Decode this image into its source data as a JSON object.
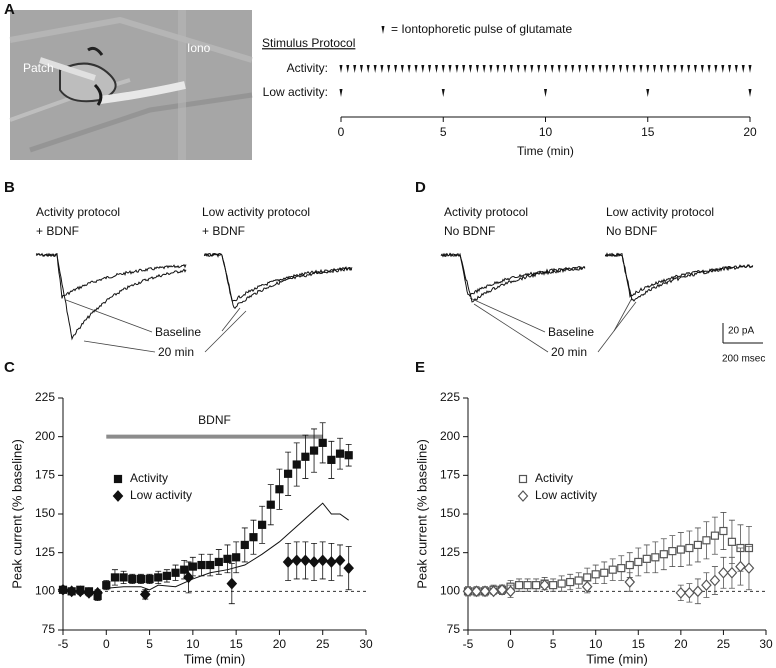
{
  "panel_labels": [
    "A",
    "B",
    "C",
    "D",
    "E"
  ],
  "micrograph_labels": [
    "Patch",
    "Iono"
  ],
  "traces": [
    {
      "title": [
        "Activity protocol",
        "+ BDNF"
      ]
    },
    {
      "title": [
        "Low activity protocol",
        "+ BDNF"
      ]
    },
    {
      "title": [
        "Activity protocol",
        "No BDNF"
      ]
    },
    {
      "title": [
        "Low activity protocol",
        "No BDNF"
      ]
    }
  ],
  "trace_labels": [
    {
      "baseline": "Baseline",
      "late": "20 min"
    },
    {
      "baseline": "Baseline",
      "late": "20 min"
    }
  ],
  "scale_bar": {
    "amplitude": "20 pA",
    "time": "200 msec"
  },
  "chart_data": [
    {
      "type": "raster",
      "title": "Stimulus Protocol",
      "legend_label": "= Iontophoretic pulse of glutamate",
      "xlabel": "Time (min)",
      "xlim": [
        0,
        20
      ],
      "xticks": [
        0,
        5,
        10,
        15,
        20
      ],
      "color": "#111",
      "series": [
        {
          "name": "Activity:",
          "x": [
            0,
            0.33,
            0.67,
            1,
            1.33,
            1.67,
            2,
            2.33,
            2.67,
            3,
            3.33,
            3.67,
            4,
            4.33,
            4.67,
            5,
            5.33,
            5.67,
            6,
            6.33,
            6.67,
            7,
            7.33,
            7.67,
            8,
            8.33,
            8.67,
            9,
            9.33,
            9.67,
            10,
            10.33,
            10.67,
            11,
            11.33,
            11.67,
            12,
            12.33,
            12.67,
            13,
            13.33,
            13.67,
            14,
            14.33,
            14.67,
            15,
            15.33,
            15.67,
            16,
            16.33,
            16.67,
            17,
            17.33,
            17.67,
            18,
            18.33,
            18.67,
            19,
            19.33,
            19.67,
            20
          ]
        },
        {
          "name": "Low activity:",
          "x": [
            0,
            5,
            10,
            15,
            20
          ]
        }
      ]
    },
    {
      "type": "scatter",
      "xlabel": "Time (min)",
      "ylabel": "Peak current (% baseline)",
      "xlim": [
        -5,
        30
      ],
      "ylim": [
        75,
        225
      ],
      "xticks": [
        -5,
        0,
        5,
        10,
        15,
        20,
        25,
        30
      ],
      "yticks": [
        75,
        100,
        125,
        150,
        175,
        200,
        225
      ],
      "reference_line": 100,
      "legend": "upper left",
      "annotation": {
        "text": "BDNF",
        "x": [
          0,
          25
        ],
        "y": 200,
        "color": "#8c8c8c"
      },
      "series": [
        {
          "name": "Activity",
          "marker": "square",
          "filled": true,
          "color": "#111",
          "x": [
            -5,
            -4,
            -3,
            -2,
            -1,
            0,
            1,
            2,
            3,
            4,
            5,
            6,
            7,
            8,
            9,
            10,
            11,
            12,
            13,
            14,
            15,
            16,
            17,
            18,
            19,
            20,
            21,
            22,
            23,
            24,
            25,
            26,
            27,
            28
          ],
          "values": [
            101,
            100,
            101,
            100,
            97,
            104,
            109,
            109,
            108,
            108,
            108,
            109,
            110,
            112,
            114,
            116,
            117,
            117,
            119,
            121,
            122,
            130,
            135,
            143,
            156,
            166,
            176,
            182,
            187,
            191,
            196,
            185,
            189,
            188
          ],
          "errors": [
            2,
            2,
            2,
            2,
            3,
            3,
            5,
            4,
            3,
            3,
            3,
            4,
            4,
            5,
            6,
            6,
            7,
            7,
            8,
            9,
            10,
            11,
            11,
            12,
            13,
            13,
            14,
            14,
            14,
            14,
            13,
            12,
            10,
            7
          ]
        },
        {
          "name": "Low activity",
          "marker": "diamond",
          "filled": true,
          "color": "#111",
          "x": [
            -5,
            -4,
            -3,
            -2,
            -1,
            4.5,
            9.5,
            14.5,
            21,
            22,
            23,
            24,
            25,
            26,
            27,
            28
          ],
          "values": [
            101,
            100,
            100,
            99,
            99,
            98,
            109,
            105,
            119,
            120,
            120,
            119,
            120,
            119,
            120,
            115
          ],
          "errors": [
            2,
            2,
            2,
            2,
            2,
            3,
            10,
            13,
            12,
            12,
            12,
            12,
            12,
            12,
            10,
            14
          ]
        },
        {
          "marker": "line",
          "color": "#111",
          "x": [
            0,
            2,
            4,
            5,
            6,
            8,
            10,
            12,
            14,
            16,
            18,
            20,
            22,
            24,
            25,
            26,
            27,
            28
          ],
          "values": [
            102,
            103,
            103,
            101,
            104,
            103,
            108,
            112,
            114,
            117,
            124,
            132,
            142,
            152,
            157,
            150,
            150,
            146
          ]
        }
      ]
    },
    {
      "type": "scatter",
      "xlabel": "Time (min)",
      "ylabel": "Peak current (% baseline)",
      "xlim": [
        -5,
        30
      ],
      "ylim": [
        75,
        225
      ],
      "xticks": [
        -5,
        0,
        5,
        10,
        15,
        20,
        25,
        30
      ],
      "yticks": [
        75,
        100,
        125,
        150,
        175,
        200,
        225
      ],
      "reference_line": 100,
      "legend": "upper left",
      "series": [
        {
          "name": "Activity",
          "marker": "square",
          "filled": false,
          "color": "#555",
          "x": [
            -5,
            -4,
            -3,
            -2,
            -1,
            0,
            1,
            2,
            3,
            4,
            5,
            6,
            7,
            8,
            9,
            10,
            11,
            12,
            13,
            14,
            15,
            16,
            17,
            18,
            19,
            20,
            21,
            22,
            23,
            24,
            25,
            26,
            27,
            28
          ],
          "values": [
            100,
            100,
            100,
            101,
            101,
            103,
            104,
            104,
            104,
            105,
            104,
            105,
            106,
            107,
            109,
            111,
            112,
            114,
            115,
            117,
            119,
            121,
            122,
            124,
            126,
            127,
            128,
            130,
            133,
            136,
            139,
            132,
            128,
            128
          ],
          "errors": [
            3,
            3,
            3,
            3,
            3,
            4,
            4,
            4,
            4,
            4,
            4,
            5,
            5,
            5,
            6,
            6,
            7,
            7,
            8,
            8,
            9,
            9,
            10,
            10,
            10,
            11,
            11,
            11,
            12,
            12,
            12,
            14,
            15,
            14
          ]
        },
        {
          "name": "Low activity",
          "marker": "diamond",
          "filled": false,
          "color": "#555",
          "x": [
            -5,
            -4,
            -3,
            -2,
            -1,
            0,
            4,
            9,
            14,
            20,
            21,
            22,
            23,
            24,
            25,
            26,
            27,
            28
          ],
          "values": [
            100,
            100,
            100,
            100,
            101,
            100,
            104,
            103,
            106,
            99,
            99,
            100,
            104,
            107,
            112,
            112,
            116,
            115
          ],
          "errors": [
            2,
            2,
            2,
            2,
            3,
            4,
            3,
            4,
            6,
            5,
            6,
            8,
            8,
            9,
            10,
            10,
            12,
            14
          ]
        }
      ]
    }
  ]
}
